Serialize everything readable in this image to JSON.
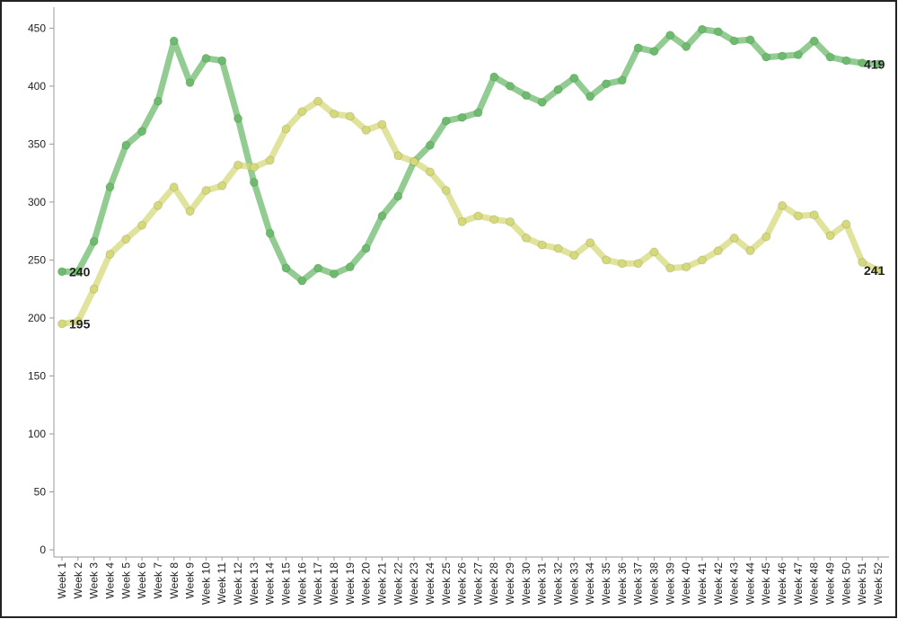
{
  "chart_data": {
    "type": "line",
    "categories": [
      "Week 1",
      "Week 2",
      "Week 3",
      "Week 4",
      "Week 5",
      "Week 6",
      "Week 7",
      "Week 8",
      "Week 9",
      "Week 10",
      "Week 11",
      "Week 12",
      "Week 13",
      "Week 14",
      "Week 15",
      "Week 16",
      "Week 17",
      "Week 18",
      "Week 19",
      "Week 20",
      "Week 21",
      "Week 22",
      "Week 23",
      "Week 24",
      "Week 25",
      "Week 26",
      "Week 27",
      "Week 28",
      "Week 29",
      "Week 30",
      "Week 31",
      "Week 32",
      "Week 33",
      "Week 34",
      "Week 35",
      "Week 36",
      "Week 37",
      "Week 38",
      "Week 39",
      "Week 40",
      "Week 41",
      "Week 42",
      "Week 43",
      "Week 44",
      "Week 45",
      "Week 46",
      "Week 47",
      "Week 48",
      "Week 49",
      "Week 50",
      "Week 51",
      "Week 52"
    ],
    "series": [
      {
        "color": "#6dbb6d",
        "values": [
          240,
          240,
          266,
          313,
          349,
          361,
          387,
          439,
          403,
          424,
          422,
          372,
          317,
          273,
          243,
          232,
          243,
          238,
          244,
          260,
          288,
          305,
          335,
          349,
          370,
          373,
          377,
          408,
          400,
          392,
          386,
          397,
          407,
          391,
          402,
          405,
          433,
          430,
          444,
          434,
          449,
          447,
          439,
          440,
          425,
          426,
          427,
          439,
          425,
          422,
          420,
          419
        ]
      },
      {
        "color": "#d6d97a",
        "values": [
          195,
          197,
          225,
          255,
          268,
          280,
          297,
          313,
          292,
          310,
          314,
          332,
          330,
          336,
          363,
          378,
          387,
          376,
          374,
          362,
          367,
          340,
          335,
          326,
          310,
          283,
          288,
          285,
          283,
          269,
          263,
          260,
          254,
          265,
          250,
          247,
          247,
          257,
          243,
          244,
          250,
          258,
          269,
          258,
          270,
          297,
          288,
          289,
          271,
          281,
          248,
          241
        ]
      }
    ],
    "ylim": [
      0,
      465
    ],
    "yticks": [
      0,
      50,
      100,
      150,
      200,
      250,
      300,
      350,
      400,
      450
    ]
  }
}
